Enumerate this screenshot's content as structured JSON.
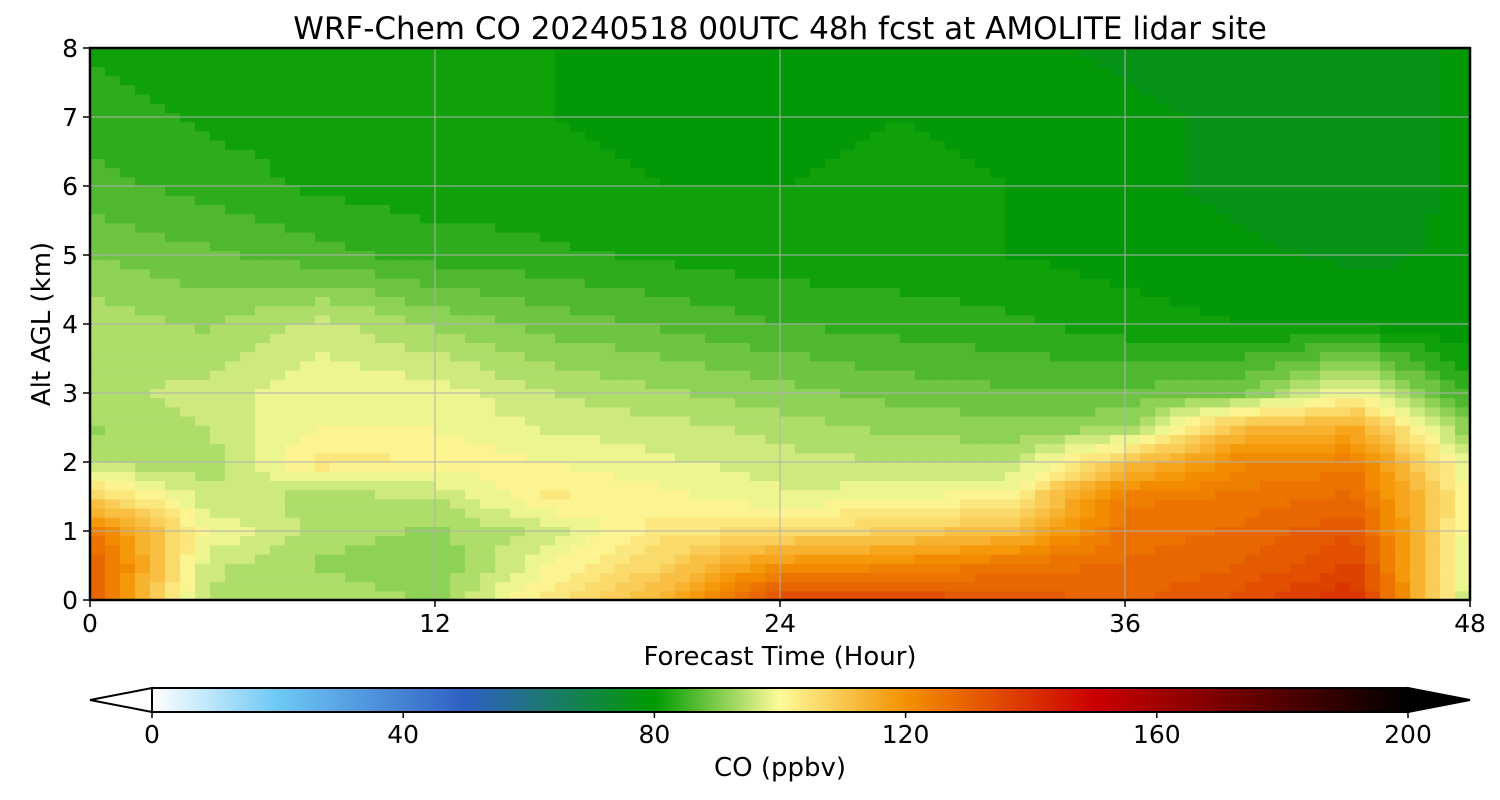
{
  "chart_data": {
    "type": "heatmap",
    "title": "WRF-Chem CO  20240518 00UTC 48h fcst at AMOLITE lidar site",
    "xlabel": "Forecast Time (Hour)",
    "ylabel": "Alt AGL (km)",
    "xlim": [
      0,
      48
    ],
    "ylim": [
      0,
      8
    ],
    "x_ticks": [
      "0",
      "12",
      "24",
      "36",
      "48"
    ],
    "y_ticks": [
      "0",
      "1",
      "2",
      "3",
      "4",
      "5",
      "6",
      "7",
      "8"
    ],
    "grid": true,
    "colorbar": {
      "label": "CO  (ppbv)",
      "range": [
        0,
        200
      ],
      "ticks": [
        "0",
        "40",
        "80",
        "120",
        "160",
        "200"
      ],
      "extend": "both",
      "orientation": "horizontal",
      "placement": "bottom",
      "stops": [
        {
          "value": 0,
          "color": "#ffffff"
        },
        {
          "value": 20,
          "color": "#6ec8f5"
        },
        {
          "value": 50,
          "color": "#2f5fc2"
        },
        {
          "value": 80,
          "color": "#009a00"
        },
        {
          "value": 100,
          "color": "#fdfb9a"
        },
        {
          "value": 120,
          "color": "#f49100"
        },
        {
          "value": 150,
          "color": "#cc0000"
        },
        {
          "value": 200,
          "color": "#000000"
        }
      ]
    },
    "x": [
      0,
      4,
      8,
      12,
      16,
      20,
      24,
      28,
      32,
      36,
      40,
      44,
      48
    ],
    "y": [
      0,
      0.5,
      1,
      1.5,
      2,
      2.5,
      3,
      4,
      5,
      6,
      7,
      8
    ],
    "z": [
      [
        130,
        94,
        95,
        92,
        104,
        113,
        135,
        135,
        132,
        129,
        133,
        140,
        94
      ],
      [
        132,
        96,
        92,
        90,
        100,
        108,
        120,
        122,
        126,
        128,
        130,
        136,
        96
      ],
      [
        125,
        100,
        94,
        92,
        96,
        104,
        106,
        108,
        112,
        126,
        128,
        132,
        98
      ],
      [
        108,
        96,
        94,
        95,
        103,
        101,
        98,
        99,
        102,
        124,
        126,
        128,
        100
      ],
      [
        94,
        93,
        104,
        102,
        100,
        98,
        96,
        95,
        94,
        110,
        122,
        124,
        97
      ],
      [
        92,
        95,
        100,
        100,
        97,
        96,
        94,
        92,
        91,
        92,
        112,
        115,
        90
      ],
      [
        94,
        96,
        100,
        99,
        95,
        93,
        91,
        89,
        88,
        88,
        90,
        100,
        84
      ],
      [
        94,
        92,
        96,
        92,
        89,
        87,
        85,
        84,
        83,
        81,
        80,
        79,
        78
      ],
      [
        90,
        88,
        86,
        84,
        83,
        82,
        81,
        81,
        80,
        79,
        78,
        77,
        78
      ],
      [
        86,
        84,
        82,
        81,
        81,
        80,
        80,
        81,
        80,
        78,
        77,
        76,
        78
      ],
      [
        84,
        82,
        81,
        80,
        80,
        79,
        79,
        80,
        79,
        78,
        77,
        76,
        78
      ],
      [
        82,
        81,
        81,
        80,
        80,
        79,
        79,
        79,
        78,
        77,
        77,
        76,
        78
      ]
    ]
  }
}
